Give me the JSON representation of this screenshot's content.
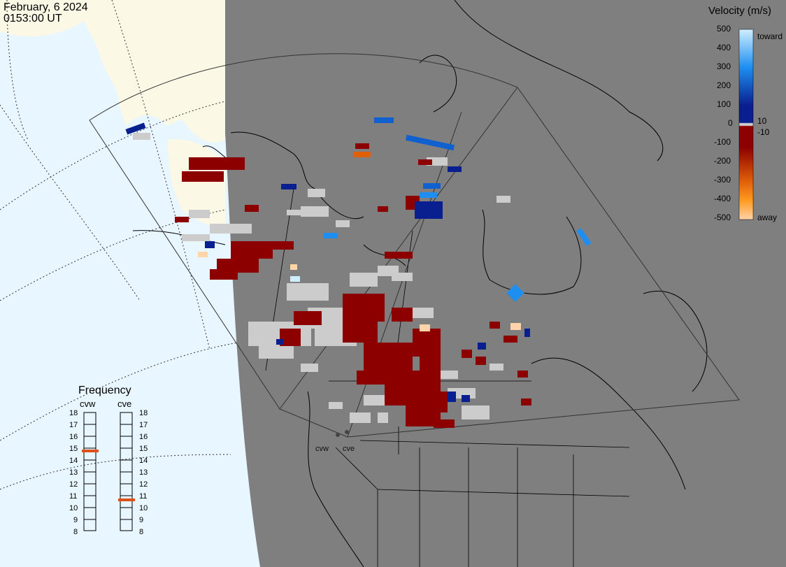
{
  "header": {
    "date": "February, 6 2024",
    "time": "0153:00 UT"
  },
  "colorbar": {
    "title": "Velocity (m/s)",
    "ticks": [
      "500",
      "400",
      "300",
      "200",
      "100",
      "0",
      "-100",
      "-200",
      "-300",
      "-400",
      "-500"
    ],
    "inner_pos": "10",
    "inner_neg": "-10",
    "label_top": "toward",
    "label_bottom": "away",
    "colors": {
      "toward_max": "#cfeeff",
      "toward_mid": "#1e8ff0",
      "toward_min": "#0a1f8f",
      "zero": "#d0d0d0",
      "away_min": "#8c0000",
      "away_mid": "#e0600a",
      "away_max": "#ffd4a8"
    }
  },
  "frequency": {
    "title": "Frequency",
    "radars": [
      {
        "name": "cvw",
        "selected_mhz": 15
      },
      {
        "name": "cve",
        "selected_mhz": 11
      }
    ],
    "scale": [
      "18",
      "17",
      "16",
      "15",
      "14",
      "13",
      "12",
      "11",
      "10",
      "9",
      "8"
    ],
    "marker_color": "#e0501a"
  },
  "sites": [
    "cvw",
    "cve"
  ],
  "map_colors": {
    "land_night": "#808080",
    "ocean_day": "#e8f6ff",
    "land_day": "#fbf8e6",
    "ground_scatter": "#cccccc"
  }
}
